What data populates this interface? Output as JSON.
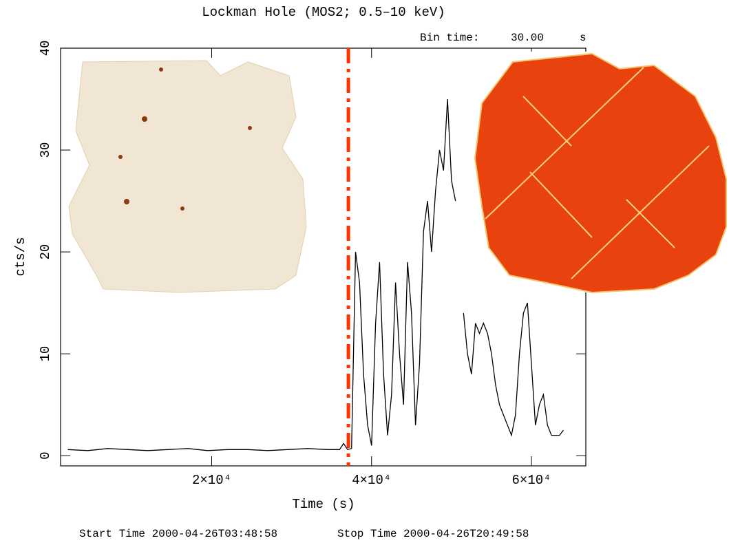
{
  "chart_data": {
    "type": "line",
    "title": "Lockman Hole (MOS2; 0.5–10 keV)",
    "bin_time": {
      "label": "Bin time:",
      "value": "30.00",
      "unit": "s"
    },
    "x_label": "Time (s)",
    "y_label": "cts/s",
    "start_time": "Start Time 2000-04-26T03:48:58",
    "stop_time": "Stop Time 2000-04-26T20:49:58",
    "color": "#000000",
    "marker_x": 37100,
    "marker_color": "#ff3300",
    "xlim": [
      1100,
      66800
    ],
    "ylim": [
      -1,
      40
    ],
    "xticks": [
      {
        "value": 20000,
        "label": "2×10⁴"
      },
      {
        "value": 40000,
        "label": "4×10⁴"
      },
      {
        "value": 60000,
        "label": "6×10⁴"
      }
    ],
    "yticks": [
      0,
      10,
      20,
      30,
      40
    ],
    "x": [
      2000,
      4500,
      7000,
      9500,
      12000,
      14500,
      17000,
      19500,
      22000,
      24500,
      27000,
      29500,
      32000,
      34500,
      36000,
      36500,
      37000,
      37500,
      38000,
      38500,
      39000,
      39500,
      40000,
      40500,
      41000,
      41500,
      42000,
      42500,
      43000,
      43500,
      44000,
      44500,
      45000,
      45500,
      46000,
      46500,
      47000,
      47500,
      48000,
      48500,
      49000,
      49500,
      50000,
      50500,
      51000,
      51500,
      52000,
      52500,
      53000,
      53500,
      54000,
      54500,
      55000,
      55500,
      56000,
      56500,
      57000,
      57500,
      58000,
      58500,
      59000,
      59500,
      60000,
      60500,
      61000,
      61500,
      62000,
      62500,
      63000,
      63500,
      64000
    ],
    "values": [
      0.6,
      0.5,
      0.7,
      0.6,
      0.5,
      0.6,
      0.7,
      0.5,
      0.6,
      0.6,
      0.5,
      0.6,
      0.7,
      0.6,
      0.6,
      1.2,
      0.6,
      0.7,
      20,
      17,
      8,
      3,
      1,
      13,
      19,
      8,
      2,
      6,
      17,
      10,
      5,
      19,
      14,
      3,
      9,
      22,
      25,
      20,
      26,
      30,
      28,
      35,
      27,
      25,
      null,
      14,
      10,
      8,
      13,
      12,
      13,
      12,
      10,
      7,
      5,
      4,
      3,
      2,
      4,
      10,
      14,
      15,
      9,
      3,
      5,
      6,
      3,
      2,
      2,
      2,
      2.5
    ]
  }
}
